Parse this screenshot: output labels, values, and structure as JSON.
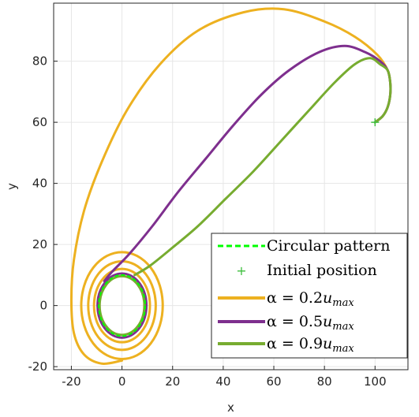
{
  "chart_data": {
    "type": "line",
    "title": "",
    "xlabel": "x",
    "ylabel": "y",
    "xlim": [
      -27,
      113
    ],
    "ylim": [
      -21,
      99
    ],
    "xticks": [
      -20,
      0,
      20,
      40,
      60,
      80,
      100
    ],
    "yticks": [
      -20,
      0,
      20,
      40,
      60,
      80
    ],
    "xtick_labels": [
      "-20",
      "0",
      "20",
      "40",
      "60",
      "80",
      "100"
    ],
    "ytick_labels": [
      "-20",
      "0",
      "20",
      "40",
      "60",
      "80"
    ],
    "grid": true,
    "legend_position": "bottom-right",
    "legend": {
      "circular": "Circular pattern",
      "initial": "Initial position",
      "s1_prefix": "α = 0.2",
      "s1_sub": "max",
      "s2_prefix": "α = 0.5",
      "s2_sub": "max",
      "s3_prefix": "α = 0.9",
      "s3_sub": "max",
      "u": "u"
    },
    "colors": {
      "circular": "#00ff00",
      "initial": "#3fbf3f",
      "s1": "#edb120",
      "s2": "#7e2f8e",
      "s3": "#77ac30"
    },
    "initial_position": {
      "x": 100,
      "y": 60
    },
    "circular_pattern": {
      "center": [
        0,
        0
      ],
      "radius": 10
    },
    "series": [
      {
        "name": "α = 0.2u_max",
        "color": "#edb120",
        "approach": [
          [
            100,
            60
          ],
          [
            103,
            62
          ],
          [
            105,
            65
          ],
          [
            106,
            69
          ],
          [
            106,
            73
          ],
          [
            105,
            77
          ],
          [
            101,
            82
          ],
          [
            92,
            88
          ],
          [
            80,
            93
          ],
          [
            64,
            97
          ],
          [
            48,
            96
          ],
          [
            30,
            90
          ],
          [
            15,
            79
          ],
          [
            2,
            64
          ],
          [
            -8,
            47
          ],
          [
            -15,
            31
          ],
          [
            -19,
            15
          ],
          [
            -20,
            2
          ],
          [
            -19,
            -9
          ],
          [
            -15,
            -16
          ],
          [
            -8,
            -19
          ],
          [
            0,
            -18
          ]
        ],
        "spiral_radii": [
          17.5,
          14.5,
          12
        ]
      },
      {
        "name": "α = 0.5u_max",
        "color": "#7e2f8e",
        "approach": [
          [
            100,
            60
          ],
          [
            103,
            62
          ],
          [
            105,
            65
          ],
          [
            106,
            69
          ],
          [
            106,
            73
          ],
          [
            105,
            77
          ],
          [
            102,
            80
          ],
          [
            96,
            83
          ],
          [
            88,
            85
          ],
          [
            78,
            83
          ],
          [
            66,
            77
          ],
          [
            55,
            69
          ],
          [
            44,
            59
          ],
          [
            33,
            48
          ],
          [
            22,
            37
          ],
          [
            12,
            26
          ],
          [
            3,
            17
          ],
          [
            -4,
            11
          ],
          [
            -7,
            8
          ]
        ],
        "spiral_radii": [
          10.5
        ]
      },
      {
        "name": "α = 0.9u_max",
        "color": "#77ac30",
        "approach": [
          [
            100,
            60
          ],
          [
            103,
            62
          ],
          [
            105,
            65
          ],
          [
            106,
            69
          ],
          [
            106,
            73
          ],
          [
            105,
            77
          ],
          [
            102,
            79
          ],
          [
            98,
            81
          ],
          [
            92,
            79
          ],
          [
            84,
            73
          ],
          [
            74,
            64
          ],
          [
            63,
            54
          ],
          [
            52,
            44
          ],
          [
            41,
            35
          ],
          [
            30,
            26
          ],
          [
            20,
            19
          ],
          [
            11,
            13
          ],
          [
            5,
            10
          ]
        ],
        "spiral_radii": [
          9.6
        ]
      }
    ]
  }
}
